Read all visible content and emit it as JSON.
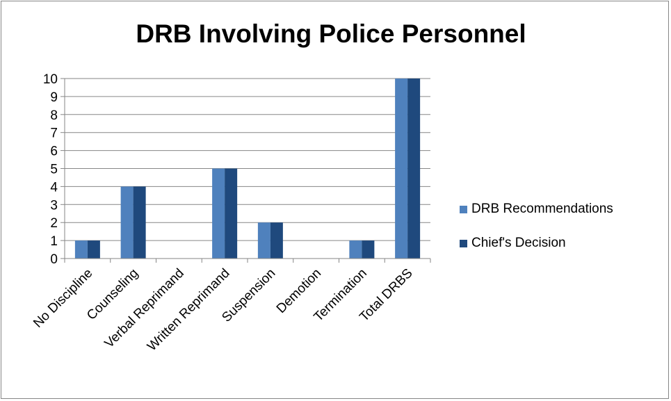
{
  "chart_data": {
    "type": "bar",
    "title": "DRB Involving Police Personnel",
    "categories": [
      "No Discipline",
      "Counseling",
      "Verbal Reprimand",
      "Written Reprimand",
      "Suspension",
      "Demotion",
      "Termination",
      "Total DRBS"
    ],
    "series": [
      {
        "name": "DRB Recommendations",
        "color": "#4f81bd",
        "values": [
          1,
          4,
          0,
          5,
          2,
          0,
          1,
          10
        ]
      },
      {
        "name": "Chief's Decision",
        "color": "#1f497d",
        "values": [
          1,
          4,
          0,
          5,
          2,
          0,
          1,
          10
        ]
      }
    ],
    "ylim": [
      0,
      10
    ],
    "yticks": [
      "0",
      "1",
      "2",
      "3",
      "4",
      "5",
      "6",
      "7",
      "8",
      "9",
      "10"
    ],
    "grid": true,
    "legend": "right",
    "gridline_color": "#868686"
  }
}
